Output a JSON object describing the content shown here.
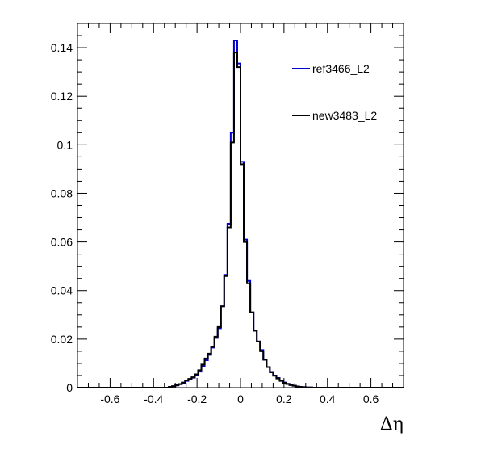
{
  "chart_data": {
    "type": "line",
    "xlabel": "Δη",
    "ylabel": "",
    "xlim": [
      -0.75,
      0.75
    ],
    "ylim": [
      0,
      0.15
    ],
    "x_ticks": [
      -0.6,
      -0.4,
      -0.2,
      0,
      0.2,
      0.4,
      0.6
    ],
    "x_tick_labels": [
      "-0.6",
      "-0.4",
      "-0.2",
      "0",
      "0.2",
      "0.4",
      "0.6"
    ],
    "y_ticks": [
      0,
      0.02,
      0.04,
      0.06,
      0.08,
      0.1,
      0.12,
      0.14
    ],
    "y_tick_labels": [
      "0",
      "0.02",
      "0.04",
      "0.06",
      "0.08",
      "0.1",
      "0.12",
      "0.14"
    ],
    "legend_position": "top-right",
    "bin_edges_range": [
      -0.75,
      0.75
    ],
    "bin_width": 0.015,
    "series": [
      {
        "name": "ref3466_L2",
        "color": "#0000cc",
        "style": "histogram-step",
        "bin_centers": [
          -0.3225,
          -0.3075,
          -0.2925,
          -0.2775,
          -0.2625,
          -0.2475,
          -0.2325,
          -0.2175,
          -0.2025,
          -0.1875,
          -0.1725,
          -0.1575,
          -0.1425,
          -0.1275,
          -0.1125,
          -0.0975,
          -0.0825,
          -0.0675,
          -0.0525,
          -0.0375,
          -0.0225,
          -0.0075,
          0.0075,
          0.0225,
          0.0375,
          0.0525,
          0.0675,
          0.0825,
          0.0975,
          0.1125,
          0.1275,
          0.1425,
          0.1575,
          0.1725,
          0.1875,
          0.2025,
          0.2175,
          0.2325,
          0.2475,
          0.2625,
          0.2775,
          0.2925,
          0.3075,
          0.3225
        ],
        "values": [
          0.0003,
          0.0006,
          0.0009,
          0.0014,
          0.002,
          0.0028,
          0.0034,
          0.0041,
          0.0052,
          0.0066,
          0.0088,
          0.0113,
          0.0135,
          0.0165,
          0.0205,
          0.0245,
          0.0335,
          0.0465,
          0.0675,
          0.105,
          0.143,
          0.1335,
          0.093,
          0.061,
          0.044,
          0.031,
          0.0235,
          0.019,
          0.0155,
          0.0115,
          0.0085,
          0.0065,
          0.005,
          0.004,
          0.0029,
          0.0021,
          0.0016,
          0.0011,
          0.0008,
          0.0005,
          0.0003,
          0.0002,
          0.0001,
          0.0001
        ]
      },
      {
        "name": "new3483_L2",
        "color": "#000000",
        "style": "histogram-step",
        "bin_centers": [
          -0.3225,
          -0.3075,
          -0.2925,
          -0.2775,
          -0.2625,
          -0.2475,
          -0.2325,
          -0.2175,
          -0.2025,
          -0.1875,
          -0.1725,
          -0.1575,
          -0.1425,
          -0.1275,
          -0.1125,
          -0.0975,
          -0.0825,
          -0.0675,
          -0.0525,
          -0.0375,
          -0.0225,
          -0.0075,
          0.0075,
          0.0225,
          0.0375,
          0.0525,
          0.0675,
          0.0825,
          0.0975,
          0.1125,
          0.1275,
          0.1425,
          0.1575,
          0.1725,
          0.1875,
          0.2025,
          0.2175,
          0.2325,
          0.2475,
          0.2625,
          0.2775,
          0.2925,
          0.3075,
          0.3225
        ],
        "values": [
          0.0003,
          0.0006,
          0.001,
          0.0015,
          0.0021,
          0.003,
          0.0036,
          0.0043,
          0.0055,
          0.0072,
          0.0095,
          0.012,
          0.014,
          0.0168,
          0.021,
          0.025,
          0.0335,
          0.046,
          0.066,
          0.101,
          0.138,
          0.132,
          0.092,
          0.06,
          0.043,
          0.031,
          0.0235,
          0.019,
          0.015,
          0.0115,
          0.0085,
          0.0063,
          0.0049,
          0.0038,
          0.0028,
          0.002,
          0.0015,
          0.0011,
          0.0008,
          0.0005,
          0.0003,
          0.0002,
          0.0001,
          0.0001
        ]
      }
    ]
  }
}
